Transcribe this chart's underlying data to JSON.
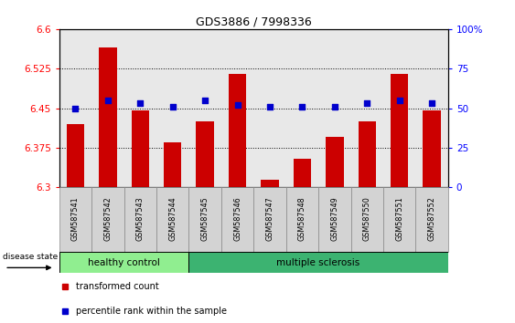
{
  "title": "GDS3886 / 7998336",
  "samples": [
    "GSM587541",
    "GSM587542",
    "GSM587543",
    "GSM587544",
    "GSM587545",
    "GSM587546",
    "GSM587547",
    "GSM587548",
    "GSM587549",
    "GSM587550",
    "GSM587551",
    "GSM587552"
  ],
  "bar_values": [
    6.42,
    6.565,
    6.445,
    6.385,
    6.425,
    6.515,
    6.315,
    6.355,
    6.395,
    6.425,
    6.515,
    6.445
  ],
  "percentile_values": [
    50,
    55,
    53,
    51,
    55,
    52,
    51,
    51,
    51,
    53,
    55,
    53
  ],
  "bar_baseline": 6.3,
  "ylim_left": [
    6.3,
    6.6
  ],
  "ylim_right": [
    0,
    100
  ],
  "yticks_left": [
    6.3,
    6.375,
    6.45,
    6.525,
    6.6
  ],
  "yticks_right": [
    0,
    25,
    50,
    75,
    100
  ],
  "ytick_labels_left": [
    "6.3",
    "6.375",
    "6.45",
    "6.525",
    "6.6"
  ],
  "ytick_labels_right": [
    "0",
    "25",
    "50",
    "75",
    "100%"
  ],
  "bar_color": "#cc0000",
  "percentile_color": "#0000cc",
  "healthy_control_count": 4,
  "ms_count": 8,
  "group_labels": [
    "healthy control",
    "multiple sclerosis"
  ],
  "group_color_hc": "#90ee90",
  "group_color_ms": "#3cb371",
  "legend_items": [
    "transformed count",
    "percentile rank within the sample"
  ],
  "legend_colors": [
    "#cc0000",
    "#0000cc"
  ],
  "disease_state_label": "disease state",
  "plot_bg_color": "#e8e8e8",
  "grid_color": "black",
  "grid_style": ":",
  "grid_linewidth": 0.7
}
